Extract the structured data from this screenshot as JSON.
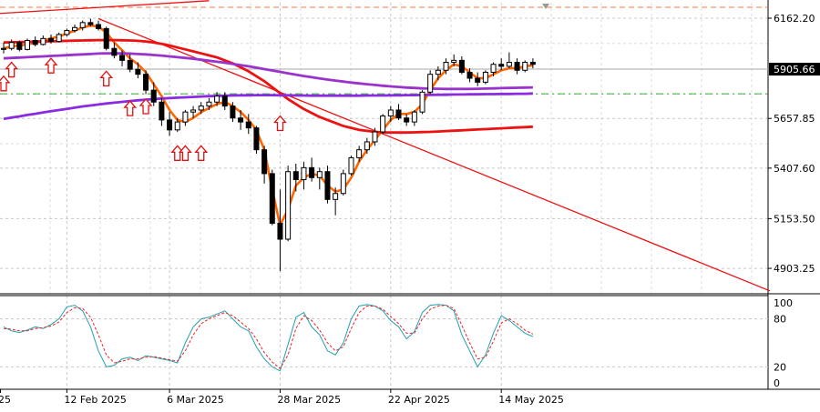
{
  "chart_data": {
    "type": "line",
    "title": "",
    "price_panel": {
      "ylim": [
        4780,
        6240
      ],
      "y_ticks": [
        "6162.20",
        "5657.85",
        "5407.60",
        "5153.50",
        "4903.25"
      ],
      "current_price": "5905.66",
      "reference_level": 5782,
      "candles_ohlc": [
        [
          6005,
          6040,
          5985,
          6010
        ],
        [
          6010,
          6055,
          6000,
          6040
        ],
        [
          6040,
          6050,
          5995,
          6005
        ],
        [
          6005,
          6060,
          6000,
          6050
        ],
        [
          6050,
          6070,
          6020,
          6030
        ],
        [
          6030,
          6075,
          6025,
          6060
        ],
        [
          6060,
          6080,
          6035,
          6045
        ],
        [
          6045,
          6090,
          6040,
          6080
        ],
        [
          6080,
          6110,
          6070,
          6100
        ],
        [
          6100,
          6130,
          6090,
          6115
        ],
        [
          6115,
          6150,
          6100,
          6140
        ],
        [
          6140,
          6160,
          6120,
          6130
        ],
        [
          6130,
          6150,
          6100,
          6110
        ],
        [
          6110,
          6120,
          6000,
          6010
        ],
        [
          6010,
          6040,
          5960,
          5975
        ],
        [
          5975,
          6000,
          5920,
          5950
        ],
        [
          5950,
          5980,
          5890,
          5905
        ],
        [
          5905,
          5940,
          5860,
          5880
        ],
        [
          5880,
          5900,
          5780,
          5800
        ],
        [
          5800,
          5840,
          5720,
          5740
        ],
        [
          5740,
          5760,
          5620,
          5650
        ],
        [
          5650,
          5690,
          5570,
          5600
        ],
        [
          5600,
          5660,
          5590,
          5640
        ],
        [
          5640,
          5700,
          5620,
          5690
        ],
        [
          5690,
          5720,
          5660,
          5700
        ],
        [
          5700,
          5740,
          5680,
          5720
        ],
        [
          5720,
          5760,
          5700,
          5740
        ],
        [
          5740,
          5790,
          5720,
          5770
        ],
        [
          5770,
          5790,
          5700,
          5720
        ],
        [
          5720,
          5740,
          5640,
          5660
        ],
        [
          5660,
          5700,
          5600,
          5640
        ],
        [
          5640,
          5680,
          5580,
          5610
        ],
        [
          5610,
          5620,
          5480,
          5500
        ],
        [
          5500,
          5520,
          5330,
          5380
        ],
        [
          5380,
          5400,
          5120,
          5130
        ],
        [
          5130,
          5300,
          4890,
          5050
        ],
        [
          5050,
          5420,
          5040,
          5390
        ],
        [
          5390,
          5430,
          5290,
          5350
        ],
        [
          5350,
          5440,
          5300,
          5410
        ],
        [
          5410,
          5460,
          5340,
          5360
        ],
        [
          5360,
          5410,
          5300,
          5390
        ],
        [
          5390,
          5420,
          5230,
          5250
        ],
        [
          5250,
          5310,
          5170,
          5280
        ],
        [
          5280,
          5400,
          5270,
          5380
        ],
        [
          5380,
          5470,
          5370,
          5460
        ],
        [
          5460,
          5520,
          5440,
          5500
        ],
        [
          5500,
          5560,
          5480,
          5540
        ],
        [
          5540,
          5610,
          5520,
          5590
        ],
        [
          5590,
          5680,
          5580,
          5670
        ],
        [
          5670,
          5720,
          5640,
          5700
        ],
        [
          5700,
          5730,
          5650,
          5660
        ],
        [
          5660,
          5680,
          5620,
          5640
        ],
        [
          5640,
          5700,
          5620,
          5690
        ],
        [
          5690,
          5800,
          5680,
          5790
        ],
        [
          5790,
          5900,
          5780,
          5880
        ],
        [
          5880,
          5920,
          5850,
          5900
        ],
        [
          5900,
          5960,
          5880,
          5940
        ],
        [
          5940,
          5980,
          5920,
          5950
        ],
        [
          5950,
          5970,
          5880,
          5890
        ],
        [
          5890,
          5910,
          5840,
          5860
        ],
        [
          5860,
          5890,
          5820,
          5840
        ],
        [
          5840,
          5900,
          5830,
          5890
        ],
        [
          5890,
          5940,
          5870,
          5930
        ],
        [
          5930,
          5960,
          5900,
          5920
        ],
        [
          5920,
          5990,
          5910,
          5940
        ],
        [
          5940,
          5960,
          5880,
          5900
        ],
        [
          5900,
          5950,
          5890,
          5940
        ],
        [
          5940,
          5960,
          5910,
          5930
        ]
      ],
      "moving_averages": [
        {
          "color": "#ff6600",
          "values": [
            6010,
            6020,
            6025,
            6030,
            6040,
            6050,
            6060,
            6070,
            6085,
            6100,
            6115,
            6125,
            6120,
            6090,
            6040,
            6000,
            5960,
            5930,
            5890,
            5830,
            5770,
            5700,
            5650,
            5640,
            5660,
            5690,
            5710,
            5730,
            5740,
            5720,
            5690,
            5650,
            5600,
            5500,
            5300,
            5120,
            5200,
            5320,
            5360,
            5380,
            5370,
            5320,
            5290,
            5300,
            5360,
            5440,
            5500,
            5550,
            5600,
            5650,
            5680,
            5680,
            5690,
            5730,
            5800,
            5860,
            5900,
            5930,
            5920,
            5890,
            5860,
            5860,
            5880,
            5900,
            5910,
            5910,
            5920,
            5925
          ]
        },
        {
          "color": "#ee1111",
          "values": [
            6040,
            6041,
            6042,
            6043,
            6044,
            6045,
            6046,
            6047,
            6048,
            6049,
            6050,
            6051,
            6052,
            6052,
            6052,
            6051,
            6050,
            6048,
            6045,
            6040,
            6033,
            6025,
            6015,
            6005,
            5995,
            5985,
            5975,
            5965,
            5950,
            5935,
            5915,
            5895,
            5870,
            5845,
            5815,
            5785,
            5755,
            5730,
            5705,
            5685,
            5665,
            5650,
            5635,
            5620,
            5610,
            5600,
            5595,
            5590,
            5588,
            5587,
            5587,
            5587,
            5588,
            5589,
            5590,
            5592,
            5594,
            5596,
            5598,
            5600,
            5602,
            5604,
            5606,
            5608,
            5610,
            5612,
            5614,
            5616
          ]
        },
        {
          "color": "#9933cc",
          "values": [
            5960,
            5962,
            5964,
            5966,
            5968,
            5970,
            5972,
            5974,
            5976,
            5978,
            5980,
            5982,
            5984,
            5985,
            5985,
            5985,
            5984,
            5982,
            5980,
            5977,
            5974,
            5970,
            5966,
            5962,
            5958,
            5953,
            5948,
            5943,
            5938,
            5932,
            5926,
            5920,
            5913,
            5906,
            5899,
            5892,
            5885,
            5878,
            5871,
            5865,
            5859,
            5853,
            5848,
            5843,
            5838,
            5834,
            5830,
            5826,
            5822,
            5819,
            5816,
            5813,
            5811,
            5809,
            5808,
            5807,
            5806,
            5806,
            5806,
            5806,
            5807,
            5808,
            5809,
            5810,
            5811,
            5812,
            5813,
            5814
          ]
        },
        {
          "color": "#8a2be2",
          "values": [
            5655,
            5662,
            5668,
            5675,
            5681,
            5688,
            5694,
            5700,
            5706,
            5712,
            5718,
            5723,
            5728,
            5733,
            5737,
            5741,
            5745,
            5749,
            5752,
            5755,
            5758,
            5760,
            5762,
            5764,
            5766,
            5768,
            5770,
            5771,
            5772,
            5773,
            5774,
            5774,
            5775,
            5775,
            5775,
            5774,
            5774,
            5773,
            5773,
            5772,
            5772,
            5772,
            5772,
            5772,
            5772,
            5772,
            5773,
            5773,
            5773,
            5774,
            5774,
            5775,
            5775,
            5776,
            5776,
            5777,
            5777,
            5778,
            5778,
            5779,
            5779,
            5780,
            5780,
            5781,
            5781,
            5782,
            5782,
            5783
          ]
        }
      ],
      "trendlines": [
        {
          "color": "#ee1111",
          "from": [
            12,
            6160
          ],
          "to": [
            97,
            4790
          ]
        },
        {
          "color": "#ee1111",
          "from": [
            -3,
            6180
          ],
          "to": [
            26,
            6250
          ]
        }
      ],
      "fractal_arrows": [
        {
          "i": 0,
          "v": 5870
        },
        {
          "i": 1,
          "v": 5940
        },
        {
          "i": 6,
          "v": 5960
        },
        {
          "i": 13,
          "v": 5895
        },
        {
          "i": 16,
          "v": 5745
        },
        {
          "i": 18,
          "v": 5755
        },
        {
          "i": 22,
          "v": 5520
        },
        {
          "i": 23,
          "v": 5520
        },
        {
          "i": 25,
          "v": 5520
        },
        {
          "i": 35,
          "v": 5670
        }
      ]
    },
    "stochastic_panel": {
      "ylim": [
        0,
        100
      ],
      "levels": [
        20,
        80
      ],
      "y_ticks": [
        "100",
        "80",
        "20",
        "0"
      ],
      "series": [
        {
          "color": "#22a0b0",
          "values": [
            70,
            65,
            63,
            66,
            70,
            68,
            73,
            80,
            95,
            97,
            90,
            70,
            40,
            20,
            22,
            30,
            32,
            28,
            34,
            32,
            30,
            28,
            25,
            50,
            70,
            80,
            82,
            86,
            90,
            80,
            70,
            65,
            45,
            30,
            20,
            15,
            48,
            82,
            88,
            70,
            60,
            40,
            35,
            50,
            80,
            96,
            98,
            96,
            90,
            78,
            70,
            55,
            64,
            88,
            97,
            98,
            97,
            90,
            60,
            40,
            20,
            35,
            62,
            84,
            78,
            70,
            62,
            58
          ]
        },
        {
          "color": "#ee2222",
          "values": [
            68,
            67,
            65,
            65,
            68,
            69,
            71,
            76,
            88,
            94,
            93,
            82,
            60,
            35,
            25,
            27,
            30,
            30,
            32,
            33,
            31,
            29,
            27,
            40,
            60,
            74,
            80,
            84,
            88,
            84,
            76,
            68,
            55,
            38,
            26,
            18,
            35,
            68,
            84,
            78,
            66,
            50,
            40,
            45,
            68,
            88,
            96,
            96,
            92,
            83,
            74,
            62,
            62,
            80,
            92,
            96,
            97,
            93,
            72,
            50,
            30,
            32,
            52,
            75,
            80,
            74,
            66,
            61
          ]
        }
      ]
    },
    "x_tick_labels": [
      {
        "i": -2,
        "label": "25"
      },
      {
        "i": 8,
        "label": "12 Feb 2025"
      },
      {
        "i": 21,
        "label": "6 Mar 2025"
      },
      {
        "i": 35,
        "label": "28 Mar 2025"
      },
      {
        "i": 49,
        "label": "22 Apr 2025"
      },
      {
        "i": 63,
        "label": "14 May 2025"
      }
    ]
  }
}
